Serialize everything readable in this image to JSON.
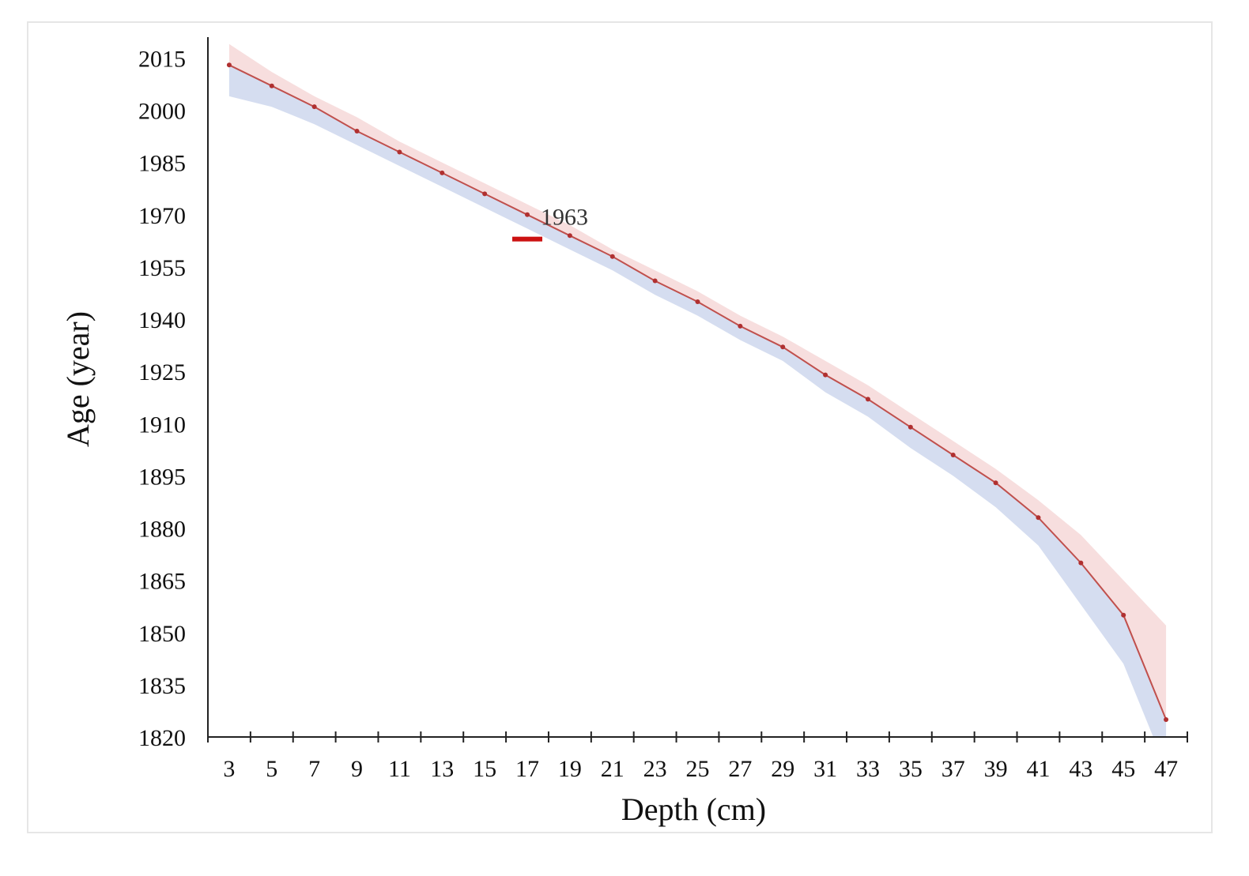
{
  "chart_data": {
    "type": "line",
    "title": "",
    "xlabel": "Depth (cm)",
    "ylabel": "Age (year)",
    "ylim": [
      1820,
      2021
    ],
    "xlim": [
      2,
      48
    ],
    "grid": false,
    "legend": "none",
    "x_ticks": [
      3,
      5,
      7,
      9,
      11,
      13,
      15,
      17,
      19,
      21,
      23,
      25,
      27,
      29,
      31,
      33,
      35,
      37,
      39,
      41,
      43,
      45,
      47
    ],
    "y_ticks": [
      1820,
      1835,
      1850,
      1865,
      1880,
      1895,
      1910,
      1925,
      1940,
      1955,
      1970,
      1985,
      2000,
      2015
    ],
    "x": [
      3,
      5,
      7,
      9,
      11,
      13,
      15,
      17,
      19,
      21,
      23,
      25,
      27,
      29,
      31,
      33,
      35,
      37,
      39,
      41,
      43,
      45,
      47
    ],
    "y": [
      2013,
      2007,
      2001,
      1994,
      1988,
      1982,
      1976,
      1970,
      1964,
      1958,
      1951,
      1945,
      1938,
      1932,
      1924,
      1917,
      1909,
      1901,
      1893,
      1883,
      1870,
      1855,
      1825
    ],
    "upper": [
      2019,
      2011,
      2004,
      1998,
      1991,
      1985,
      1979,
      1973,
      1967,
      1960,
      1954,
      1948,
      1941,
      1935,
      1928,
      1921,
      1913,
      1905,
      1897,
      1888,
      1878,
      1865,
      1852
    ],
    "lower": [
      2004,
      2001,
      1996,
      1990,
      1984,
      1978,
      1972,
      1966,
      1960,
      1954,
      1947,
      1941,
      1934,
      1928,
      1919,
      1912,
      1903,
      1895,
      1886,
      1875,
      1858,
      1841,
      1787
    ],
    "annotation": {
      "text": "1963",
      "x": 17,
      "y": 1963
    },
    "colors": {
      "line": "#c0504d",
      "upper_band": "#f7dcdc",
      "lower_band": "#d3dbef",
      "marker": "#b03030",
      "marker_1963": "#cc1111",
      "axis": "#222222"
    }
  }
}
